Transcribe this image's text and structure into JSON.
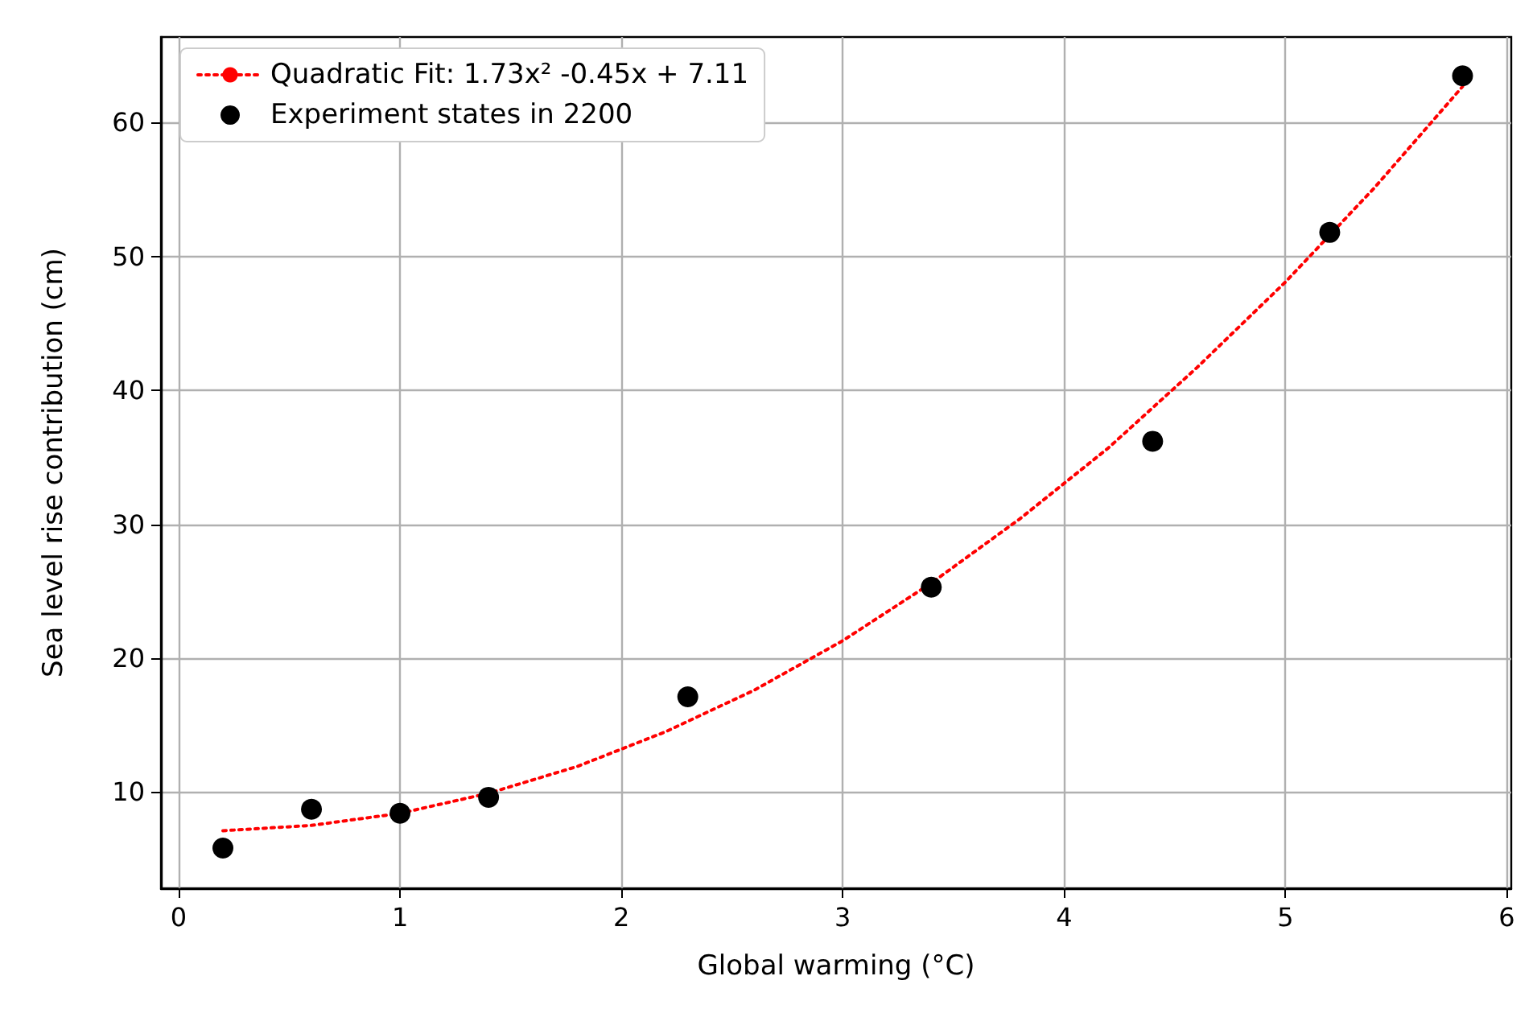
{
  "chart_data": {
    "type": "scatter",
    "xlabel": "Global warming (°C)",
    "ylabel": "Sea level rise contribution (cm)",
    "xlim": [
      -0.08,
      6.02
    ],
    "ylim": [
      2.8,
      66.4
    ],
    "xticks": [
      0,
      1,
      2,
      3,
      4,
      5,
      6
    ],
    "yticks": [
      10,
      20,
      30,
      40,
      50,
      60
    ],
    "grid": true,
    "legend": "top left",
    "series": [
      {
        "name": "Quadratic Fit: 1.73x² -0.45x + 7.11",
        "type": "line",
        "color": "#ff0000",
        "line_style": "dotted",
        "marker": "none",
        "x": [
          0.2,
          0.6,
          1.0,
          1.4,
          1.8,
          2.2,
          2.6,
          3.0,
          3.4,
          3.8,
          4.2,
          4.6,
          5.0,
          5.4,
          5.8
        ],
        "values": [
          7.1,
          7.5,
          8.4,
          9.9,
          11.9,
          14.5,
          17.6,
          21.3,
          25.6,
          30.4,
          35.7,
          41.7,
          48.1,
          55.1,
          62.7
        ]
      },
      {
        "name": "Experiment states in 2200",
        "color": "#000000",
        "marker": "circle",
        "x": [
          0.2,
          0.6,
          1.0,
          1.4,
          2.3,
          3.4,
          4.4,
          5.2,
          5.8
        ],
        "values": [
          5.8,
          8.7,
          8.4,
          9.6,
          17.1,
          25.3,
          36.2,
          51.8,
          63.5
        ]
      }
    ]
  }
}
